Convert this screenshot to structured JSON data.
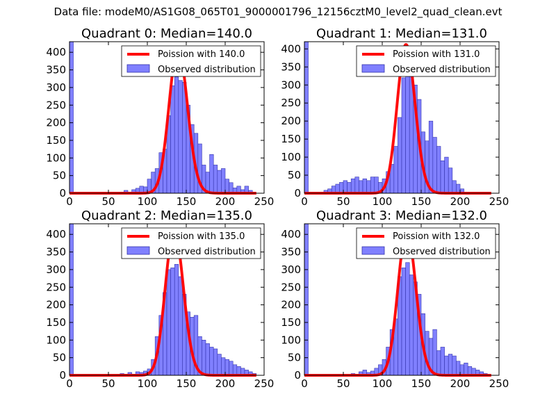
{
  "suptitle": "Data file: modeM0/AS1G08_065T01_9000001796_12156cztM0_level2_quad_clean.evt",
  "colors": {
    "hist_fill": "#8080ff",
    "hist_edge": "#3333aa",
    "poisson_line": "#ff0000"
  },
  "chart_data": [
    {
      "type": "bar",
      "title": "Quadrant 0: Median=140.0",
      "median": 140.0,
      "legend": [
        "Poission with 140.0",
        "Observed distribution"
      ],
      "legend_position": "top-right",
      "xlim": [
        0,
        250
      ],
      "ylim": [
        0,
        430
      ],
      "xticks": [
        0,
        50,
        100,
        150,
        200,
        250
      ],
      "yticks": [
        0,
        50,
        100,
        150,
        200,
        250,
        300,
        350,
        400
      ],
      "first_bin_value": 430,
      "bin_width": 5,
      "bins_start": [
        65,
        70,
        75,
        80,
        85,
        90,
        95,
        100,
        105,
        110,
        115,
        120,
        125,
        130,
        135,
        140,
        145,
        150,
        155,
        160,
        165,
        170,
        175,
        180,
        185,
        190,
        195,
        200,
        205,
        210,
        215,
        220,
        225,
        230
      ],
      "values": [
        3,
        8,
        3,
        10,
        14,
        20,
        18,
        40,
        60,
        70,
        115,
        125,
        220,
        305,
        330,
        320,
        315,
        250,
        195,
        170,
        140,
        80,
        60,
        110,
        80,
        65,
        70,
        40,
        30,
        15,
        20,
        10,
        20,
        8
      ]
    },
    {
      "type": "bar",
      "title": "Quadrant 1: Median=131.0",
      "median": 131.0,
      "legend": [
        "Poission with 131.0",
        "Observed distribution"
      ],
      "legend_position": "top-right",
      "xlim": [
        0,
        250
      ],
      "ylim": [
        0,
        420
      ],
      "xticks": [
        0,
        50,
        100,
        150,
        200,
        250
      ],
      "yticks": [
        0,
        50,
        100,
        150,
        200,
        250,
        300,
        350,
        400
      ],
      "first_bin_value": 420,
      "bin_width": 5,
      "bins_start": [
        25,
        30,
        35,
        40,
        45,
        50,
        55,
        60,
        65,
        70,
        75,
        80,
        85,
        90,
        95,
        100,
        105,
        110,
        115,
        120,
        125,
        130,
        135,
        140,
        145,
        150,
        155,
        160,
        165,
        170,
        175,
        180,
        185,
        190,
        195,
        200
      ],
      "values": [
        8,
        12,
        20,
        25,
        30,
        35,
        30,
        40,
        45,
        35,
        40,
        35,
        45,
        45,
        30,
        40,
        60,
        80,
        130,
        210,
        320,
        330,
        380,
        300,
        260,
        170,
        145,
        200,
        155,
        130,
        90,
        100,
        70,
        35,
        25,
        12
      ]
    },
    {
      "type": "bar",
      "title": "Quadrant 2: Median=135.0",
      "median": 135.0,
      "legend": [
        "Poission with 135.0",
        "Observed distribution"
      ],
      "legend_position": "top-right",
      "xlim": [
        0,
        250
      ],
      "ylim": [
        0,
        430
      ],
      "xticks": [
        0,
        50,
        100,
        150,
        200,
        250
      ],
      "yticks": [
        0,
        50,
        100,
        150,
        200,
        250,
        300,
        350,
        400
      ],
      "first_bin_value": 430,
      "bin_width": 5,
      "bins_start": [
        65,
        70,
        75,
        80,
        85,
        90,
        95,
        100,
        105,
        110,
        115,
        120,
        125,
        130,
        135,
        140,
        145,
        150,
        155,
        160,
        165,
        170,
        175,
        180,
        185,
        190,
        195,
        200,
        205,
        210,
        215,
        220,
        225,
        230,
        235
      ],
      "values": [
        5,
        3,
        8,
        3,
        10,
        8,
        12,
        18,
        45,
        110,
        170,
        235,
        300,
        305,
        315,
        280,
        230,
        180,
        165,
        170,
        110,
        100,
        90,
        80,
        75,
        60,
        50,
        45,
        40,
        30,
        25,
        20,
        15,
        10,
        5
      ]
    },
    {
      "type": "bar",
      "title": "Quadrant 3: Median=132.0",
      "median": 132.0,
      "legend": [
        "Poission with 132.0",
        "Observed distribution"
      ],
      "legend_position": "top-right",
      "xlim": [
        0,
        250
      ],
      "ylim": [
        0,
        430
      ],
      "xticks": [
        0,
        50,
        100,
        150,
        200,
        250
      ],
      "yticks": [
        0,
        50,
        100,
        150,
        200,
        250,
        300,
        350,
        400
      ],
      "first_bin_value": 430,
      "bin_width": 5,
      "bins_start": [
        60,
        65,
        70,
        75,
        80,
        85,
        90,
        95,
        100,
        105,
        110,
        115,
        120,
        125,
        130,
        135,
        140,
        145,
        150,
        155,
        160,
        165,
        170,
        175,
        180,
        185,
        190,
        195,
        200,
        205,
        210,
        215,
        220,
        225,
        230
      ],
      "values": [
        5,
        3,
        10,
        15,
        8,
        12,
        20,
        30,
        45,
        80,
        130,
        160,
        280,
        305,
        320,
        285,
        265,
        230,
        175,
        125,
        105,
        130,
        70,
        80,
        55,
        60,
        55,
        40,
        30,
        35,
        25,
        20,
        15,
        10,
        5
      ]
    }
  ]
}
